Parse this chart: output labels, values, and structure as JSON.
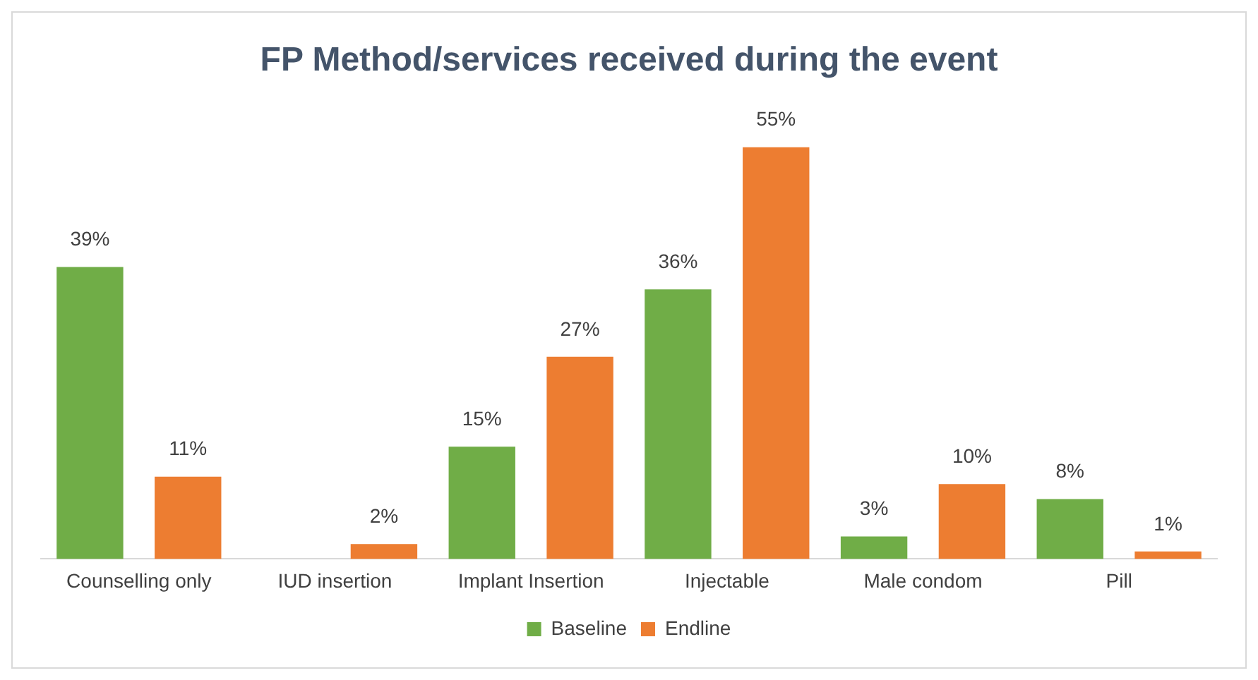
{
  "chart_data": {
    "type": "bar",
    "title": "FP Method/services received during the event",
    "categories": [
      "Counselling only",
      "IUD insertion",
      "Implant Insertion",
      "Injectable",
      "Male condom",
      "Pill"
    ],
    "series": [
      {
        "name": "Baseline",
        "color": "#70ad47",
        "values": [
          39,
          null,
          15,
          36,
          3,
          8
        ],
        "value_labels": [
          "39%",
          null,
          "15%",
          "36%",
          "3%",
          "8%"
        ]
      },
      {
        "name": "Endline",
        "color": "#ed7d31",
        "values": [
          11,
          2,
          27,
          55,
          10,
          1
        ],
        "value_labels": [
          "11%",
          "2%",
          "27%",
          "55%",
          "10%",
          "1%"
        ]
      }
    ],
    "legend": "bottom",
    "grid": false
  }
}
